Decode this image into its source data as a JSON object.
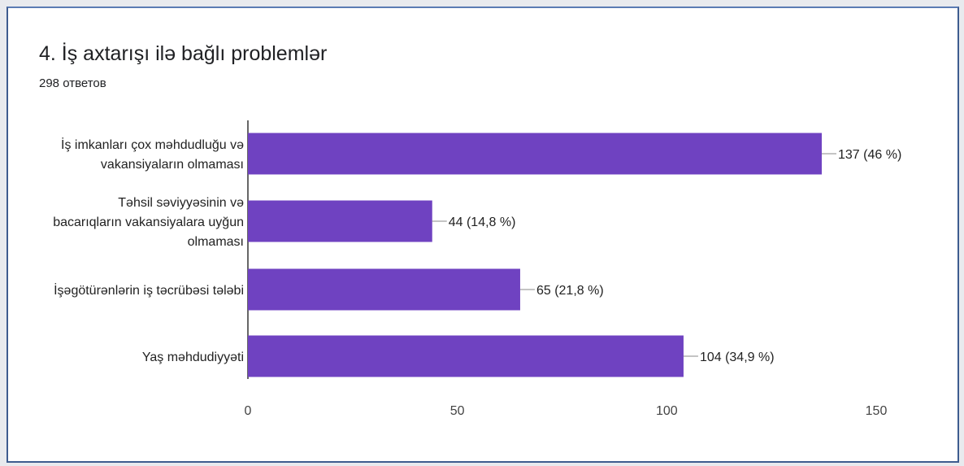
{
  "chart_data": {
    "type": "bar",
    "orientation": "horizontal",
    "title": "4. İş axtarışı ilə bağlı problemlər",
    "subtitle": "298 ответов",
    "categories": [
      [
        "İş imkanları çox məhdudluğu və",
        "vakansiyaların olmaması"
      ],
      [
        "Təhsil səviyyəsinin və",
        "bacarıqların vakansiyalara uyğun",
        "olmaması"
      ],
      [
        "İşəgötürənlərin iş təcrübəsi tələbi"
      ],
      [
        "Yaş məhdudiyyəti"
      ]
    ],
    "values": [
      137,
      44,
      65,
      104
    ],
    "data_labels": [
      "137 (46 %)",
      "44 (14,8 %)",
      "65 (21,8 %)",
      "104 (34,9 %)"
    ],
    "xlim": [
      0,
      150
    ],
    "xticks": [
      0,
      50,
      100,
      150
    ],
    "bar_color": "#6f42c1",
    "grid": false,
    "legend": "none"
  }
}
